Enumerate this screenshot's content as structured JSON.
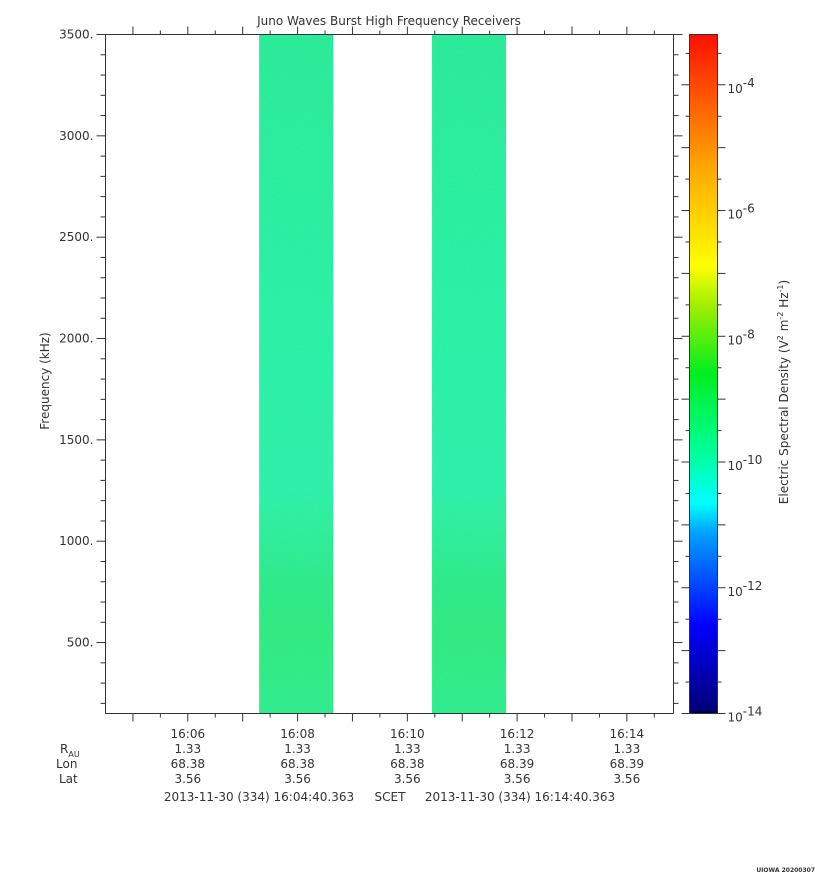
{
  "chart_data": {
    "type": "heatmap",
    "title": "Juno Waves Burst High Frequency Receivers",
    "ylabel": "Frequency (kHz)",
    "ylim": [
      150,
      3500
    ],
    "yticks": [
      500,
      1000,
      1500,
      2000,
      2500,
      3000,
      3500
    ],
    "ytick_labels": [
      "500.",
      "1000.",
      "1500.",
      "2000.",
      "2500.",
      "3000.",
      "3500."
    ],
    "xlim_minutes": [
      -0.5,
      9.85
    ],
    "xtick_labels": [
      "16:06",
      "16:08",
      "16:10",
      "16:12",
      "16:14"
    ],
    "xtick_minutes": [
      1.0,
      3.0,
      5.0,
      7.0,
      9.0
    ],
    "data_blocks": [
      {
        "start_minutes": 2.3,
        "end_minutes": 3.65,
        "log10_value_low_freq": -9.6,
        "log10_value_high_freq": -10.3
      },
      {
        "start_minutes": 5.45,
        "end_minutes": 6.8,
        "log10_value_low_freq": -9.6,
        "log10_value_high_freq": -10.3
      }
    ],
    "colorbar": {
      "label": "Electric Spectral Density (V² m⁻² Hz⁻¹)",
      "label_main": "Electric Spectral Density (V",
      "label_sq": "2",
      "label_m": " m",
      "label_m_exp": "-2",
      "label_hz": " Hz",
      "label_hz_exp": "-1",
      "label_close": ")",
      "log10_range": [
        -14,
        -3.2
      ],
      "ticks": [
        {
          "base": "10",
          "exp": "-4"
        },
        {
          "base": "10",
          "exp": "-6"
        },
        {
          "base": "10",
          "exp": "-8"
        },
        {
          "base": "10",
          "exp": "-10"
        },
        {
          "base": "10",
          "exp": "-12"
        },
        {
          "base": "10",
          "exp": "-14"
        }
      ]
    },
    "ephemeris": {
      "row_labels": {
        "rau": "R",
        "rau_sub": "AU",
        "lon": "Lon",
        "lat": "Lat"
      },
      "rau": [
        "1.33",
        "1.33",
        "1.33",
        "1.33",
        "1.33"
      ],
      "lon": [
        "68.38",
        "68.38",
        "68.38",
        "68.39",
        "68.39"
      ],
      "lat": [
        "3.56",
        "3.56",
        "3.56",
        "3.56",
        "3.56"
      ]
    },
    "time_range": {
      "start": "2013-11-30 (334) 16:04:40.363",
      "mid": "SCET",
      "end": "2013-11-30 (334) 16:14:40.363"
    },
    "footer": "UIOWA 20200307"
  }
}
